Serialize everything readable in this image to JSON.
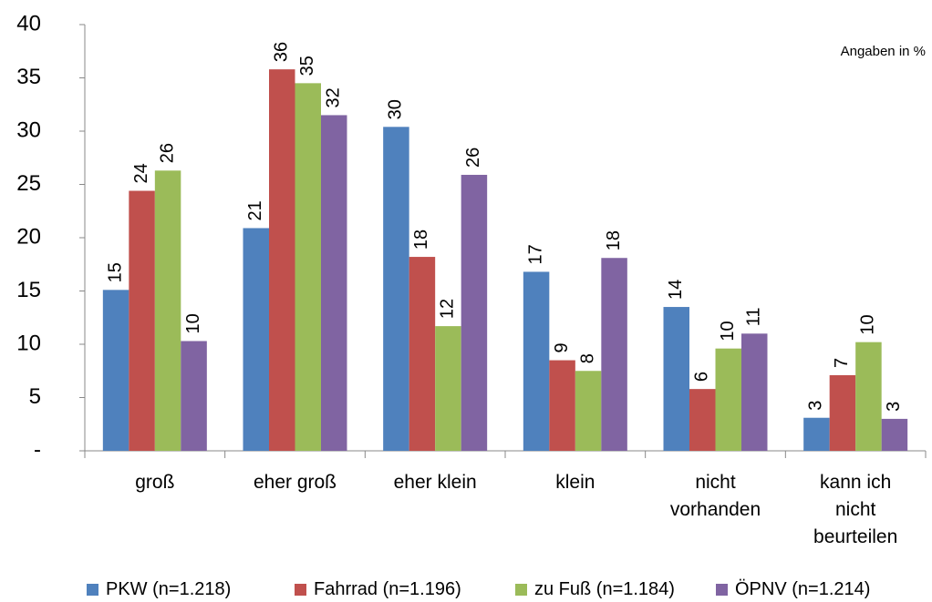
{
  "chart_data": {
    "type": "bar",
    "annotation": "Angaben in %",
    "categories": [
      "groß",
      "eher groß",
      "eher klein",
      "klein",
      "nicht vorhanden",
      "kann ich nicht beurteilen"
    ],
    "series": [
      {
        "name": "PKW (n=1.218)",
        "color": "#4f81bd",
        "values": [
          15.1,
          20.9,
          30.4,
          16.8,
          13.5,
          3.1
        ],
        "value_labels": [
          "15",
          "21",
          "30",
          "17",
          "14",
          "3"
        ]
      },
      {
        "name": "Fahrrad (n=1.196)",
        "color": "#c0504d",
        "values": [
          24.4,
          35.8,
          18.2,
          8.5,
          5.8,
          7.1
        ],
        "value_labels": [
          "24",
          "36",
          "18",
          "9",
          "6",
          "7"
        ]
      },
      {
        "name": "zu Fuß (n=1.184)",
        "color": "#9bbb59",
        "values": [
          26.3,
          34.5,
          11.7,
          7.5,
          9.6,
          10.2
        ],
        "value_labels": [
          "26",
          "35",
          "12",
          "8",
          "10",
          "10"
        ]
      },
      {
        "name": "ÖPNV (n=1.214)",
        "color": "#8064a2",
        "values": [
          10.3,
          31.5,
          25.9,
          18.1,
          11.0,
          3.0
        ],
        "value_labels": [
          "10",
          "32",
          "26",
          "18",
          "11",
          "3"
        ]
      }
    ],
    "ylim": [
      0,
      40
    ],
    "yticks": [
      {
        "value": 0,
        "label": "-"
      },
      5,
      10,
      15,
      20,
      25,
      30,
      35,
      40
    ],
    "grid": false,
    "legend": "bottom"
  }
}
